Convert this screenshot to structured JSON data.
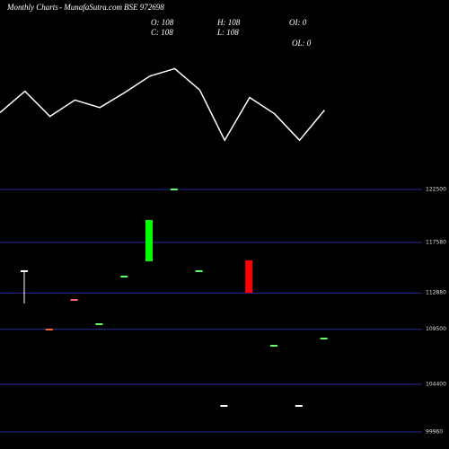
{
  "header": {
    "title": "Monthly Charts",
    "source": "- MunafaSutra.com",
    "symbol": "BSE 972698",
    "open": "O: 108",
    "high": "H: 108",
    "low": "L: 108",
    "close": "C: 108",
    "oi": "OI: 0",
    "ol": "OL: 0"
  },
  "chart_data": [
    {
      "type": "line",
      "color": "#ffffff",
      "ylim": [
        0,
        100
      ],
      "values": [
        39,
        56,
        36,
        49,
        43,
        55,
        68,
        74,
        57,
        17,
        51,
        38,
        17,
        41
      ]
    },
    {
      "type": "candlestick",
      "ylim": [
        99960,
        122500
      ],
      "yticks": [
        122500,
        117580,
        112880,
        109500,
        104400,
        99960
      ],
      "open": [
        114906,
        109479,
        112234,
        109980,
        114406,
        115825,
        122505,
        114906,
        102381,
        115909,
        107976,
        102381,
        108644
      ],
      "close": [
        114906,
        109479,
        112234,
        109980,
        114406,
        119666,
        122505,
        114906,
        102381,
        112902,
        107976,
        102381,
        108644
      ],
      "high": [
        114906,
        109479,
        112234,
        109980,
        114406,
        119666,
        122505,
        114906,
        102381,
        115909,
        107976,
        102381,
        108644
      ],
      "low": [
        111900,
        109479,
        112234,
        109980,
        114406,
        115825,
        122505,
        114906,
        102381,
        112902,
        107976,
        102381,
        108644
      ],
      "colors": [
        "#ffffff",
        "#ff6633",
        "#ff6666",
        "#66ff66",
        "#66ff66",
        "#00ff00",
        "#66ff66",
        "#66ff66",
        "#ffffff",
        "#ff0000",
        "#66ff66",
        "#ffffff",
        "#66ff66"
      ]
    }
  ]
}
